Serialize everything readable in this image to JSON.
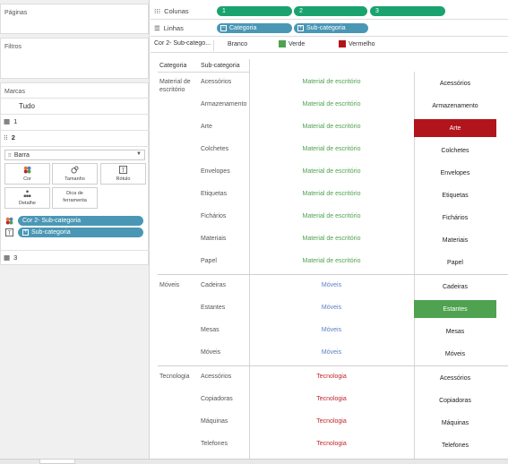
{
  "cards": {
    "pages": "Páginas",
    "filters": "Filtros",
    "marks": "Marcas"
  },
  "marks": {
    "all": "Tudo",
    "layer1": "1",
    "layer2": "2",
    "layer3": "3",
    "mark_type": "Barra",
    "buttons": {
      "color": "Cor",
      "size": "Tamanho",
      "label": "Rótulo",
      "detail": "Detalhe",
      "tooltip_line1": "Dica de",
      "tooltip_line2": "ferramenta"
    },
    "pills": {
      "color_field": "Cor 2- Sub-categoria",
      "text_field": "Sub-categoria"
    }
  },
  "shelves": {
    "columns_label": "Colunas",
    "rows_label": "Linhas",
    "columns": [
      "1",
      "2",
      "3"
    ],
    "rows": [
      "Categoria",
      "Sub-categoria"
    ]
  },
  "legend": {
    "title": "Cor 2- Sub-catego...",
    "items": [
      {
        "label": "Branco",
        "color": "#ffffff"
      },
      {
        "label": "Verde",
        "color": "#4fa24f"
      },
      {
        "label": "Vermelho",
        "color": "#b2141c"
      }
    ]
  },
  "table": {
    "header_category": "Categoria",
    "header_subcategory": "Sub-categoria",
    "groups": [
      {
        "category_line1": "Material de",
        "category_line2": "escritório",
        "color": "#4fa24f",
        "rows": [
          {
            "sub": "Acessórios",
            "col1": "Material de escritório",
            "col2": "Acessórios",
            "fill": "none"
          },
          {
            "sub": "Armazenamento",
            "col1": "Material de escritório",
            "col2": "Armazenamento",
            "fill": "none"
          },
          {
            "sub": "Arte",
            "col1": "Material de escritório",
            "col2": "Arte",
            "fill": "red"
          },
          {
            "sub": "Colchetes",
            "col1": "Material de escritório",
            "col2": "Colchetes",
            "fill": "none"
          },
          {
            "sub": "Envelopes",
            "col1": "Material de escritório",
            "col2": "Envelopes",
            "fill": "none"
          },
          {
            "sub": "Etiquetas",
            "col1": "Material de escritório",
            "col2": "Etiquetas",
            "fill": "none"
          },
          {
            "sub": "Fichários",
            "col1": "Material de escritório",
            "col2": "Fichários",
            "fill": "none"
          },
          {
            "sub": "Materiais",
            "col1": "Material de escritório",
            "col2": "Materiais",
            "fill": "none"
          },
          {
            "sub": "Papel",
            "col1": "Material de escritório",
            "col2": "Papel",
            "fill": "none"
          }
        ]
      },
      {
        "category_line1": "Móveis",
        "category_line2": "",
        "color": "#5a7fc2",
        "rows": [
          {
            "sub": "Cadeiras",
            "col1": "Móveis",
            "col2": "Cadeiras",
            "fill": "none"
          },
          {
            "sub": "Estantes",
            "col1": "Móveis",
            "col2": "Estantes",
            "fill": "green"
          },
          {
            "sub": "Mesas",
            "col1": "Móveis",
            "col2": "Mesas",
            "fill": "none"
          },
          {
            "sub": "Móveis",
            "col1": "Móveis",
            "col2": "Móveis",
            "fill": "none"
          }
        ]
      },
      {
        "category_line1": "Tecnologia",
        "category_line2": "",
        "color": "#c0262d",
        "rows": [
          {
            "sub": "Acessórios",
            "col1": "Tecnologia",
            "col2": "Acessórios",
            "fill": "none"
          },
          {
            "sub": "Copiadoras",
            "col1": "Tecnologia",
            "col2": "Copiadoras",
            "fill": "none"
          },
          {
            "sub": "Máquinas",
            "col1": "Tecnologia",
            "col2": "Máquinas",
            "fill": "none"
          },
          {
            "sub": "Telefones",
            "col1": "Tecnologia",
            "col2": "Telefones",
            "fill": "none"
          }
        ]
      }
    ]
  },
  "colors": {
    "red_fill": "#b2141c",
    "green_fill": "#4fa24f",
    "green_pill": "#1aa36f",
    "blue_pill": "#4a97b5"
  }
}
